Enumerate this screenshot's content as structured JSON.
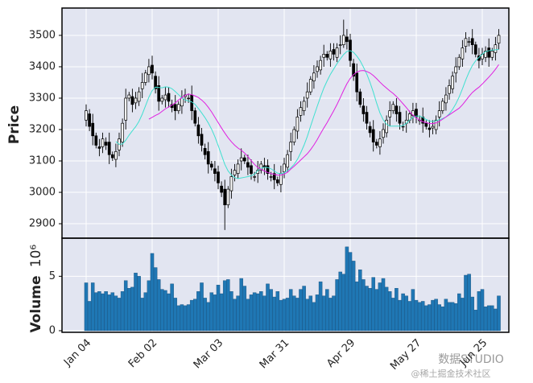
{
  "chart_data": {
    "type": "candlestick",
    "y_label": "Price",
    "volume_label": "Volume",
    "volume_scale_label": "10⁶",
    "categories": [
      "Jan 04",
      null,
      null,
      null,
      null,
      null,
      null,
      null,
      null,
      null,
      null,
      null,
      null,
      null,
      null,
      null,
      null,
      null,
      null,
      null,
      "Feb 02",
      null,
      null,
      null,
      null,
      null,
      null,
      null,
      null,
      null,
      null,
      null,
      null,
      null,
      null,
      null,
      null,
      null,
      null,
      null,
      "Mar 03",
      null,
      null,
      null,
      null,
      null,
      null,
      null,
      null,
      null,
      null,
      null,
      null,
      null,
      null,
      null,
      null,
      null,
      null,
      null,
      "Mar 31",
      null,
      null,
      null,
      null,
      null,
      null,
      null,
      null,
      null,
      null,
      null,
      null,
      null,
      null,
      null,
      null,
      null,
      null,
      null,
      "Apr 29",
      null,
      null,
      null,
      null,
      null,
      null,
      null,
      null,
      null,
      null,
      null,
      null,
      null,
      null,
      null,
      null,
      null,
      null,
      null,
      "May 27",
      null,
      null,
      null,
      null,
      null,
      null,
      null,
      null,
      null,
      null,
      null,
      null,
      null,
      null,
      null,
      null,
      null,
      null,
      null,
      "Jun 25",
      null,
      null,
      null,
      null,
      null
    ],
    "open": [
      3230,
      3250,
      3220,
      3180,
      3145,
      3145,
      3160,
      3160,
      3120,
      3105,
      3135,
      3160,
      3230,
      3300,
      3305,
      3285,
      3290,
      3330,
      3350,
      3375,
      3405,
      3370,
      3340,
      3290,
      3295,
      3315,
      3280,
      3280,
      3260,
      3275,
      3305,
      3300,
      3310,
      3260,
      3215,
      3185,
      3140,
      3130,
      3090,
      3075,
      3065,
      3020,
      3010,
      2960,
      3005,
      3055,
      3060,
      3100,
      3110,
      3095,
      3085,
      3050,
      3060,
      3070,
      3085,
      3085,
      3050,
      3060,
      3040,
      3025,
      3065,
      3080,
      3130,
      3160,
      3195,
      3245,
      3260,
      3300,
      3320,
      3355,
      3385,
      3390,
      3430,
      3440,
      3425,
      3455,
      3430,
      3470,
      3470,
      3495,
      3485,
      3410,
      3380,
      3320,
      3275,
      3255,
      3210,
      3200,
      3160,
      3145,
      3175,
      3190,
      3240,
      3260,
      3275,
      3255,
      3210,
      3220,
      3230,
      3245,
      3265,
      3230,
      3240,
      3220,
      3205,
      3205,
      3200,
      3240,
      3260,
      3285,
      3315,
      3330,
      3380,
      3400,
      3425,
      3465,
      3480,
      3490,
      3470,
      3435,
      3425,
      3430,
      3460,
      3430,
      3445,
      3475
    ],
    "high": [
      3280,
      3265,
      3250,
      3190,
      3170,
      3190,
      3175,
      3190,
      3130,
      3155,
      3190,
      3235,
      3330,
      3320,
      3330,
      3320,
      3335,
      3380,
      3390,
      3425,
      3435,
      3385,
      3370,
      3310,
      3335,
      3335,
      3295,
      3310,
      3290,
      3325,
      3330,
      3315,
      3340,
      3270,
      3240,
      3205,
      3155,
      3160,
      3100,
      3100,
      3085,
      3035,
      3040,
      3020,
      3075,
      3090,
      3105,
      3140,
      3120,
      3120,
      3105,
      3065,
      3100,
      3100,
      3110,
      3105,
      3065,
      3090,
      3050,
      3085,
      3110,
      3135,
      3190,
      3210,
      3265,
      3290,
      3305,
      3350,
      3370,
      3405,
      3420,
      3435,
      3470,
      3450,
      3475,
      3475,
      3475,
      3500,
      3550,
      3520,
      3505,
      3425,
      3410,
      3330,
      3300,
      3275,
      3225,
      3230,
      3170,
      3195,
      3220,
      3245,
      3290,
      3290,
      3300,
      3275,
      3225,
      3260,
      3260,
      3285,
      3285,
      3245,
      3270,
      3230,
      3230,
      3230,
      3245,
      3290,
      3300,
      3335,
      3360,
      3385,
      3430,
      3440,
      3485,
      3510,
      3495,
      3520,
      3480,
      3460,
      3460,
      3465,
      3490,
      3460,
      3495,
      3520
    ],
    "low": [
      3210,
      3195,
      3150,
      3140,
      3115,
      3125,
      3135,
      3090,
      3100,
      3080,
      3115,
      3145,
      3200,
      3290,
      3255,
      3265,
      3275,
      3300,
      3340,
      3350,
      3360,
      3315,
      3260,
      3280,
      3270,
      3270,
      3255,
      3230,
      3250,
      3250,
      3285,
      3285,
      3230,
      3210,
      3155,
      3130,
      3105,
      3060,
      3070,
      3035,
      3010,
      2985,
      2880,
      2950,
      2980,
      3035,
      3045,
      3070,
      3090,
      3055,
      3040,
      3035,
      3030,
      3060,
      3055,
      3040,
      3035,
      3010,
      3020,
      3000,
      3045,
      3065,
      3100,
      3150,
      3170,
      3225,
      3245,
      3270,
      3310,
      3330,
      3365,
      3375,
      3400,
      3420,
      3400,
      3420,
      3415,
      3440,
      3460,
      3455,
      3400,
      3355,
      3290,
      3270,
      3225,
      3200,
      3175,
      3130,
      3140,
      3120,
      3155,
      3175,
      3210,
      3250,
      3225,
      3200,
      3195,
      3190,
      3220,
      3220,
      3220,
      3215,
      3190,
      3200,
      3175,
      3185,
      3185,
      3210,
      3250,
      3260,
      3295,
      3315,
      3350,
      3390,
      3400,
      3445,
      3465,
      3440,
      3430,
      3395,
      3405,
      3415,
      3400,
      3420,
      3420,
      3455
    ],
    "close": [
      3260,
      3210,
      3180,
      3150,
      3140,
      3170,
      3150,
      3120,
      3110,
      3130,
      3170,
      3220,
      3300,
      3310,
      3280,
      3300,
      3320,
      3350,
      3380,
      3400,
      3380,
      3330,
      3290,
      3300,
      3310,
      3290,
      3270,
      3260,
      3280,
      3300,
      3310,
      3300,
      3260,
      3220,
      3180,
      3150,
      3120,
      3090,
      3080,
      3060,
      3030,
      3000,
      2960,
      3010,
      3050,
      3070,
      3090,
      3110,
      3100,
      3080,
      3060,
      3050,
      3070,
      3090,
      3080,
      3060,
      3050,
      3040,
      3030,
      3060,
      3090,
      3120,
      3160,
      3200,
      3240,
      3270,
      3290,
      3320,
      3360,
      3380,
      3400,
      3420,
      3440,
      3430,
      3450,
      3440,
      3460,
      3470,
      3500,
      3480,
      3420,
      3370,
      3320,
      3280,
      3250,
      3220,
      3190,
      3160,
      3150,
      3170,
      3200,
      3230,
      3260,
      3280,
      3250,
      3220,
      3210,
      3230,
      3250,
      3260,
      3240,
      3230,
      3220,
      3210,
      3200,
      3210,
      3230,
      3260,
      3290,
      3310,
      3340,
      3370,
      3400,
      3430,
      3460,
      3490,
      3480,
      3470,
      3440,
      3420,
      3440,
      3450,
      3430,
      3450,
      3470,
      3500
    ],
    "volume": [
      4.4,
      2.7,
      4.4,
      3.5,
      3.6,
      3.4,
      3.6,
      3.3,
      3.5,
      3.2,
      3.0,
      3.6,
      4.6,
      3.9,
      4.0,
      5.3,
      5.0,
      3.0,
      3.5,
      4.6,
      7.1,
      5.8,
      4.7,
      3.8,
      3.7,
      3.4,
      4.3,
      3.0,
      2.3,
      2.4,
      2.3,
      2.4,
      2.8,
      2.9,
      3.6,
      4.4,
      3.0,
      2.6,
      3.5,
      3.3,
      4.2,
      3.4,
      4.6,
      4.7,
      3.6,
      2.9,
      3.2,
      4.8,
      4.1,
      2.9,
      3.3,
      3.5,
      3.4,
      3.6,
      3.2,
      4.3,
      3.8,
      3.1,
      3.6,
      2.8,
      2.9,
      3.0,
      3.8,
      3.2,
      3.0,
      3.8,
      4.1,
      2.9,
      3.2,
      2.6,
      3.3,
      4.5,
      3.2,
      3.8,
      3.0,
      3.2,
      4.7,
      5.4,
      5.2,
      7.7,
      7.2,
      6.4,
      4.5,
      5.6,
      4.7,
      4.1,
      3.9,
      4.9,
      3.8,
      4.4,
      4.8,
      4.0,
      3.6,
      3.0,
      3.9,
      2.8,
      3.4,
      3.2,
      2.7,
      3.8,
      2.8,
      2.6,
      2.7,
      2.3,
      2.4,
      2.8,
      2.9,
      2.4,
      2.2,
      2.9,
      2.6,
      2.6,
      2.5,
      3.4,
      3.0,
      5.1,
      5.2,
      3.1,
      1.9,
      3.6,
      3.8,
      2.2,
      2.3,
      2.3,
      2.0,
      3.2
    ],
    "ma": [
      {
        "color": "#40e0d0",
        "values": [
          null,
          null,
          null,
          null,
          null,
          null,
          null,
          null,
          null,
          3162,
          3153,
          3154,
          3166,
          3182,
          3196,
          3209,
          3226,
          3249,
          3276,
          3303,
          3324,
          3335,
          3334,
          3333,
          3336,
          3335,
          3330,
          3321,
          3311,
          3301,
          3294,
          3291,
          3288,
          3280,
          3267,
          3253,
          3238,
          3221,
          3201,
          3177,
          3149,
          3119,
          3089,
          3068,
          3055,
          3047,
          3044,
          3046,
          3048,
          3050,
          3053,
          3058,
          3069,
          3077,
          3080,
          3079,
          3075,
          3068,
          3061,
          3059,
          3062,
          3069,
          3078,
          3089,
          3105,
          3126,
          3150,
          3178,
          3211,
          3243,
          3274,
          3304,
          3332,
          3355,
          3376,
          3393,
          3410,
          3425,
          3439,
          3449,
          3451,
          3446,
          3434,
          3419,
          3399,
          3377,
          3350,
          3319,
          3284,
          3253,
          3231,
          3217,
          3211,
          3211,
          3211,
          3211,
          3213,
          3220,
          3230,
          3239,
          3243,
          3243,
          3239,
          3232,
          3227,
          3226,
          3228,
          3231,
          3235,
          3240,
          3250,
          3264,
          3282,
          3304,
          3330,
          3358,
          3383,
          3404,
          3419,
          3430,
          3440,
          3448,
          3451,
          3453,
          3454,
          3455
        ]
      },
      {
        "color": "#e020e0",
        "values": [
          null,
          null,
          null,
          null,
          null,
          null,
          null,
          null,
          null,
          null,
          null,
          null,
          null,
          null,
          null,
          null,
          null,
          null,
          null,
          3233,
          3239,
          3245,
          3250,
          3258,
          3266,
          3272,
          3278,
          3285,
          3294,
          3302,
          3309,
          3313,
          3311,
          3307,
          3302,
          3294,
          3284,
          3271,
          3256,
          3239,
          3222,
          3205,
          3189,
          3174,
          3161,
          3150,
          3141,
          3134,
          3125,
          3114,
          3101,
          3089,
          3079,
          3073,
          3068,
          3063,
          3060,
          3057,
          3055,
          3055,
          3058,
          3064,
          3074,
          3083,
          3093,
          3103,
          3113,
          3123,
          3136,
          3151,
          3168,
          3187,
          3205,
          3222,
          3241,
          3260,
          3280,
          3302,
          3325,
          3346,
          3363,
          3375,
          3383,
          3387,
          3388,
          3385,
          3380,
          3372,
          3362,
          3351,
          3341,
          3332,
          3323,
          3315,
          3305,
          3294,
          3282,
          3270,
          3257,
          3246,
          3237,
          3230,
          3225,
          3222,
          3219,
          3219,
          3221,
          3226,
          3233,
          3240,
          3247,
          3254,
          3261,
          3268,
          3279,
          3292,
          3306,
          3318,
          3327,
          3335,
          3345,
          3356,
          3367,
          3379,
          3392,
          3407
        ]
      }
    ],
    "ylim": [
      2854,
      3587
    ],
    "yticks": [
      2900,
      3000,
      3100,
      3200,
      3300,
      3400,
      3500
    ],
    "volume_ylim": [
      0,
      8.5
    ],
    "volume_yticks": [
      0,
      5
    ],
    "grid": true,
    "up_color": "#ffffff",
    "down_color": "#000000",
    "edge_color": "#000000",
    "volume_color": "#1f77b4",
    "background": "#e2e5f1"
  },
  "watermark": "数据STUDIO",
  "watermark_source": "@稀土掘金技术社区"
}
